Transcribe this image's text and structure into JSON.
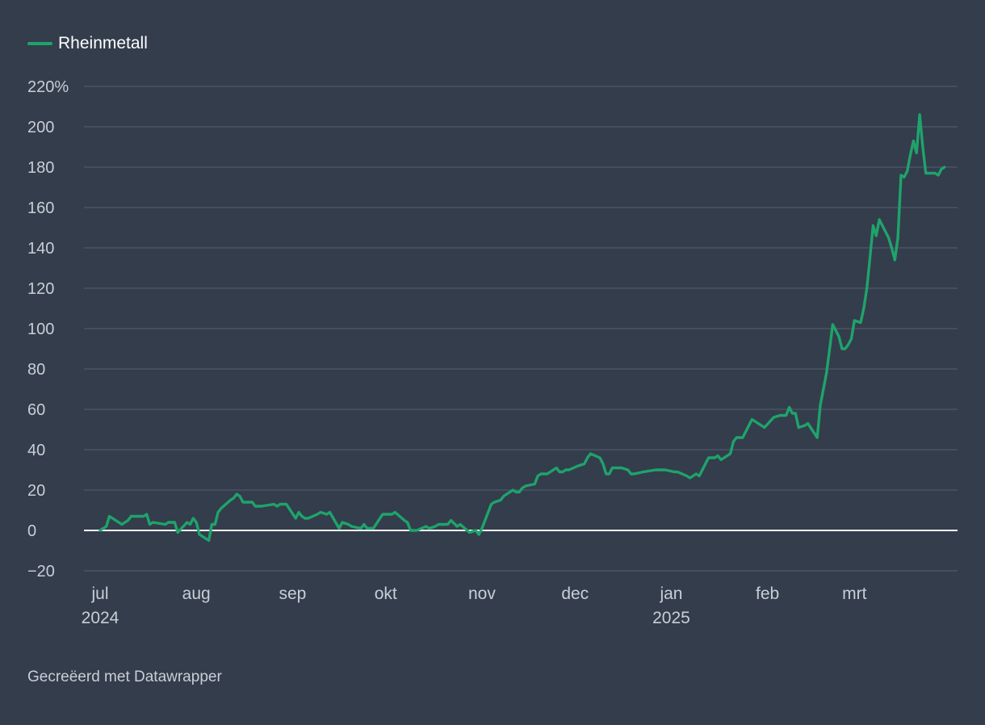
{
  "chart_data": {
    "type": "line",
    "series": [
      {
        "name": "Rheinmetall",
        "color": "#1fa36b",
        "points": [
          [
            "2024-07-01",
            0
          ],
          [
            "2024-07-03",
            2
          ],
          [
            "2024-07-04",
            7
          ],
          [
            "2024-07-05",
            6
          ],
          [
            "2024-07-08",
            3
          ],
          [
            "2024-07-09",
            4
          ],
          [
            "2024-07-10",
            5
          ],
          [
            "2024-07-11",
            7
          ],
          [
            "2024-07-15",
            7
          ],
          [
            "2024-07-16",
            8
          ],
          [
            "2024-07-17",
            3
          ],
          [
            "2024-07-18",
            4
          ],
          [
            "2024-07-22",
            3
          ],
          [
            "2024-07-23",
            4
          ],
          [
            "2024-07-25",
            4
          ],
          [
            "2024-07-26",
            -1
          ],
          [
            "2024-07-29",
            4
          ],
          [
            "2024-07-30",
            3
          ],
          [
            "2024-07-31",
            6
          ],
          [
            "2024-08-01",
            4
          ],
          [
            "2024-08-02",
            -2
          ],
          [
            "2024-08-05",
            -5
          ],
          [
            "2024-08-06",
            3
          ],
          [
            "2024-08-07",
            3
          ],
          [
            "2024-08-08",
            9
          ],
          [
            "2024-08-09",
            11
          ],
          [
            "2024-08-12",
            15
          ],
          [
            "2024-08-13",
            16
          ],
          [
            "2024-08-14",
            18
          ],
          [
            "2024-08-15",
            17
          ],
          [
            "2024-08-16",
            14
          ],
          [
            "2024-08-19",
            14
          ],
          [
            "2024-08-20",
            12
          ],
          [
            "2024-08-22",
            12
          ],
          [
            "2024-08-26",
            13
          ],
          [
            "2024-08-27",
            12
          ],
          [
            "2024-08-28",
            13
          ],
          [
            "2024-08-30",
            13
          ],
          [
            "2024-09-02",
            6
          ],
          [
            "2024-09-03",
            9
          ],
          [
            "2024-09-04",
            7
          ],
          [
            "2024-09-05",
            6
          ],
          [
            "2024-09-06",
            6
          ],
          [
            "2024-09-09",
            8
          ],
          [
            "2024-09-10",
            9
          ],
          [
            "2024-09-12",
            8
          ],
          [
            "2024-09-13",
            9
          ],
          [
            "2024-09-16",
            1
          ],
          [
            "2024-09-17",
            4
          ],
          [
            "2024-09-19",
            3
          ],
          [
            "2024-09-20",
            2
          ],
          [
            "2024-09-23",
            1
          ],
          [
            "2024-09-24",
            3
          ],
          [
            "2024-09-25",
            1
          ],
          [
            "2024-09-27",
            1
          ],
          [
            "2024-09-30",
            8
          ],
          [
            "2024-10-01",
            8
          ],
          [
            "2024-10-03",
            8
          ],
          [
            "2024-10-04",
            9
          ],
          [
            "2024-10-07",
            5
          ],
          [
            "2024-10-08",
            4
          ],
          [
            "2024-10-09",
            0
          ],
          [
            "2024-10-11",
            0
          ],
          [
            "2024-10-14",
            2
          ],
          [
            "2024-10-15",
            1
          ],
          [
            "2024-10-17",
            2
          ],
          [
            "2024-10-18",
            3
          ],
          [
            "2024-10-21",
            3
          ],
          [
            "2024-10-22",
            5
          ],
          [
            "2024-10-24",
            2
          ],
          [
            "2024-10-25",
            3
          ],
          [
            "2024-10-28",
            -1
          ],
          [
            "2024-10-30",
            0
          ],
          [
            "2024-10-31",
            -2
          ],
          [
            "2024-11-01",
            1
          ],
          [
            "2024-11-04",
            13
          ],
          [
            "2024-11-05",
            14
          ],
          [
            "2024-11-07",
            15
          ],
          [
            "2024-11-08",
            17
          ],
          [
            "2024-11-11",
            20
          ],
          [
            "2024-11-12",
            19
          ],
          [
            "2024-11-13",
            19
          ],
          [
            "2024-11-14",
            21
          ],
          [
            "2024-11-15",
            22
          ],
          [
            "2024-11-18",
            23
          ],
          [
            "2024-11-19",
            27
          ],
          [
            "2024-11-20",
            28
          ],
          [
            "2024-11-22",
            28
          ],
          [
            "2024-11-25",
            31
          ],
          [
            "2024-11-26",
            29
          ],
          [
            "2024-11-27",
            29
          ],
          [
            "2024-11-28",
            30
          ],
          [
            "2024-11-29",
            30
          ],
          [
            "2024-12-02",
            32
          ],
          [
            "2024-12-04",
            33
          ],
          [
            "2024-12-05",
            36
          ],
          [
            "2024-12-06",
            38
          ],
          [
            "2024-12-09",
            36
          ],
          [
            "2024-12-10",
            33
          ],
          [
            "2024-12-11",
            28
          ],
          [
            "2024-12-12",
            28
          ],
          [
            "2024-12-13",
            31
          ],
          [
            "2024-12-16",
            31
          ],
          [
            "2024-12-18",
            30
          ],
          [
            "2024-12-19",
            28
          ],
          [
            "2024-12-20",
            28
          ],
          [
            "2024-12-23",
            29
          ],
          [
            "2024-12-27",
            30
          ],
          [
            "2024-12-30",
            30
          ],
          [
            "2025-01-02",
            29
          ],
          [
            "2025-01-03",
            29
          ],
          [
            "2025-01-06",
            27
          ],
          [
            "2025-01-07",
            26
          ],
          [
            "2025-01-08",
            27
          ],
          [
            "2025-01-09",
            28
          ],
          [
            "2025-01-10",
            27
          ],
          [
            "2025-01-13",
            36
          ],
          [
            "2025-01-15",
            36
          ],
          [
            "2025-01-16",
            37
          ],
          [
            "2025-01-17",
            35
          ],
          [
            "2025-01-20",
            38
          ],
          [
            "2025-01-21",
            44
          ],
          [
            "2025-01-22",
            46
          ],
          [
            "2025-01-23",
            46
          ],
          [
            "2025-01-24",
            46
          ],
          [
            "2025-01-27",
            55
          ],
          [
            "2025-01-28",
            54
          ],
          [
            "2025-01-29",
            53
          ],
          [
            "2025-01-30",
            52
          ],
          [
            "2025-01-31",
            51
          ],
          [
            "2025-02-03",
            56
          ],
          [
            "2025-02-05",
            57
          ],
          [
            "2025-02-07",
            57
          ],
          [
            "2025-02-08",
            61
          ],
          [
            "2025-02-09",
            58
          ],
          [
            "2025-02-10",
            58
          ],
          [
            "2025-02-11",
            51
          ],
          [
            "2025-02-13",
            52
          ],
          [
            "2025-02-14",
            53
          ],
          [
            "2025-02-17",
            46
          ],
          [
            "2025-02-18",
            62
          ],
          [
            "2025-02-20",
            78
          ],
          [
            "2025-02-21",
            90
          ],
          [
            "2025-02-22",
            102
          ],
          [
            "2025-02-24",
            96
          ],
          [
            "2025-02-25",
            90
          ],
          [
            "2025-02-26",
            90
          ],
          [
            "2025-02-27",
            92
          ],
          [
            "2025-02-28",
            95
          ],
          [
            "2025-03-01",
            104
          ],
          [
            "2025-03-03",
            103
          ],
          [
            "2025-03-04",
            110
          ],
          [
            "2025-03-05",
            120
          ],
          [
            "2025-03-06",
            135
          ],
          [
            "2025-03-07",
            151
          ],
          [
            "2025-03-08",
            146
          ],
          [
            "2025-03-09",
            154
          ],
          [
            "2025-03-12",
            145
          ],
          [
            "2025-03-13",
            140
          ],
          [
            "2025-03-14",
            134
          ],
          [
            "2025-03-15",
            145
          ],
          [
            "2025-03-16",
            176
          ],
          [
            "2025-03-17",
            175
          ],
          [
            "2025-03-18",
            178
          ],
          [
            "2025-03-19",
            186
          ],
          [
            "2025-03-20",
            193
          ],
          [
            "2025-03-21",
            187
          ],
          [
            "2025-03-22",
            206
          ],
          [
            "2025-03-23",
            190
          ],
          [
            "2025-03-24",
            177
          ],
          [
            "2025-03-26",
            177
          ],
          [
            "2025-03-27",
            177
          ],
          [
            "2025-03-28",
            176
          ],
          [
            "2025-03-29",
            179
          ],
          [
            "2025-03-30",
            180
          ]
        ]
      }
    ],
    "yticks": [
      -20,
      0,
      20,
      40,
      60,
      80,
      100,
      120,
      140,
      160,
      180,
      200,
      220
    ],
    "ytick_labels": [
      "−20",
      "0",
      "20",
      "40",
      "60",
      "80",
      "100",
      "120",
      "140",
      "160",
      "180",
      "200",
      "220%"
    ],
    "ylim": [
      -20,
      220
    ],
    "xlim": [
      "2024-06-30",
      "2025-04-08"
    ],
    "xticks": [
      {
        "date": "2024-07-01",
        "label": "jul",
        "sublabel": "2024"
      },
      {
        "date": "2024-08-01",
        "label": "aug",
        "sublabel": ""
      },
      {
        "date": "2024-09-01",
        "label": "sep",
        "sublabel": ""
      },
      {
        "date": "2024-10-01",
        "label": "okt",
        "sublabel": ""
      },
      {
        "date": "2024-11-01",
        "label": "nov",
        "sublabel": ""
      },
      {
        "date": "2024-12-01",
        "label": "dec",
        "sublabel": ""
      },
      {
        "date": "2025-01-01",
        "label": "jan",
        "sublabel": "2025"
      },
      {
        "date": "2025-02-01",
        "label": "feb",
        "sublabel": ""
      },
      {
        "date": "2025-03-01",
        "label": "mrt",
        "sublabel": ""
      }
    ],
    "grid": true,
    "legend_position": "top-left",
    "colors": {
      "background": "#333d4c",
      "gridline": "#4f5969",
      "baseline": "#ffffff",
      "tick_label": "#c9ced6"
    }
  },
  "legend": {
    "label": "Rheinmetall"
  },
  "footer": {
    "credit": "Gecreëerd met Datawrapper"
  }
}
